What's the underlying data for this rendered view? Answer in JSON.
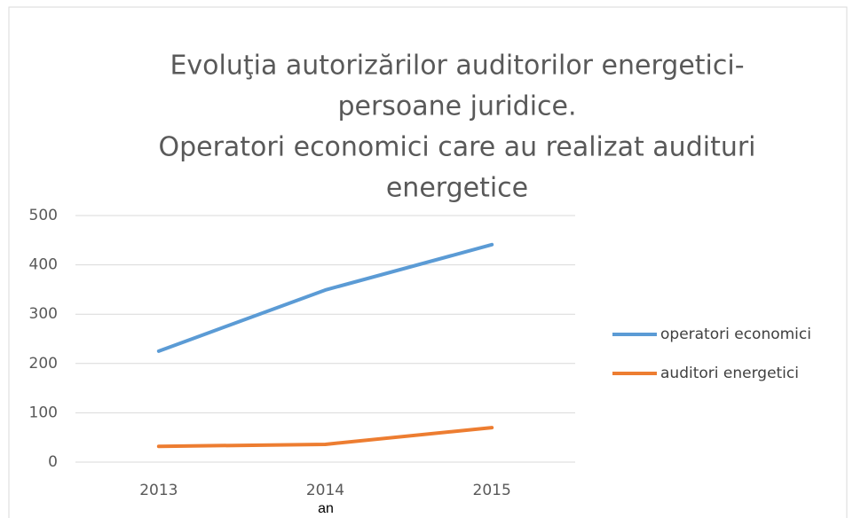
{
  "chart_data": {
    "type": "line",
    "title": [
      "Evoluţia autorizărilor auditorilor energetici-",
      "persoane juridice.",
      "Operatori economici care au realizat audituri",
      "energetice"
    ],
    "x_label": "an",
    "categories": [
      "2013",
      "2014",
      "2015"
    ],
    "series": [
      {
        "name": "operatori economici",
        "color": "#5b9bd5",
        "values": [
          225,
          349,
          441
        ]
      },
      {
        "name": "auditori energetici",
        "color": "#ed7d31",
        "values": [
          32,
          36,
          70
        ]
      }
    ],
    "ylim": [
      0,
      500
    ],
    "yticks": [
      0,
      100,
      200,
      300,
      400,
      500
    ],
    "grid": true,
    "legend": "right"
  }
}
